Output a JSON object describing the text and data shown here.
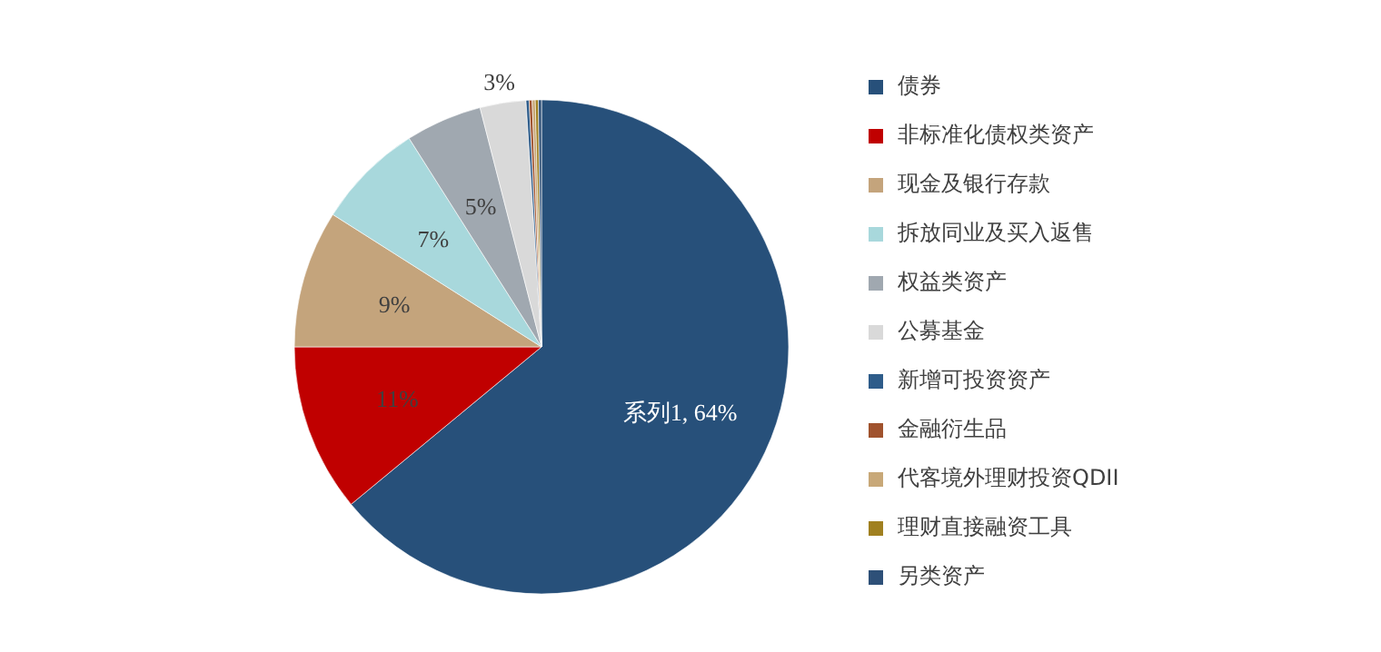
{
  "chart_data": {
    "type": "pie",
    "categories": [
      "债券",
      "非标准化债权类资产",
      "现金及银行存款",
      "拆放同业及买入返售",
      "权益类资产",
      "公募基金",
      "新增可投资资产",
      "金融衍生品",
      "代客境外理财投资QDII",
      "理财直接融资工具",
      "另类资产"
    ],
    "values": [
      64,
      11,
      9,
      7,
      5,
      3,
      0.2,
      0.2,
      0.2,
      0.2,
      0.2
    ],
    "colors": [
      "#27507a",
      "#c00000",
      "#c4a47c",
      "#a8d8dc",
      "#a0a8b0",
      "#d9d9d9",
      "#2e5c8a",
      "#a0522d",
      "#c8a878",
      "#a08020",
      "#2e5078"
    ],
    "value_labels": [
      "系列1, 64%",
      "11%",
      "9%",
      "7%",
      "5%",
      "3%",
      null,
      null,
      null,
      null,
      null
    ],
    "legend": "right"
  }
}
